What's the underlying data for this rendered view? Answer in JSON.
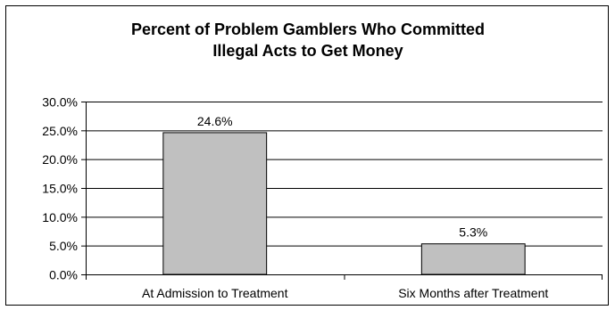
{
  "chart_data": {
    "type": "bar",
    "title": "Percent of Problem Gamblers Who Committed\nIllegal Acts to Get Money",
    "categories": [
      "At Admission to Treatment",
      "Six Months after Treatment"
    ],
    "values": [
      24.6,
      5.3
    ],
    "data_labels": [
      "24.6%",
      "5.3%"
    ],
    "ylim": [
      0,
      30
    ],
    "yticks": [
      0,
      5,
      10,
      15,
      20,
      25,
      30
    ],
    "ytick_labels": [
      "0.0%",
      "5.0%",
      "10.0%",
      "15.0%",
      "20.0%",
      "25.0%",
      "30.0%"
    ],
    "xlabel": "",
    "ylabel": "",
    "grid": true,
    "legend": "none",
    "bar_color": "#c0c0c0",
    "bar_edge_color": "#000000",
    "grid_color": "#000000"
  }
}
